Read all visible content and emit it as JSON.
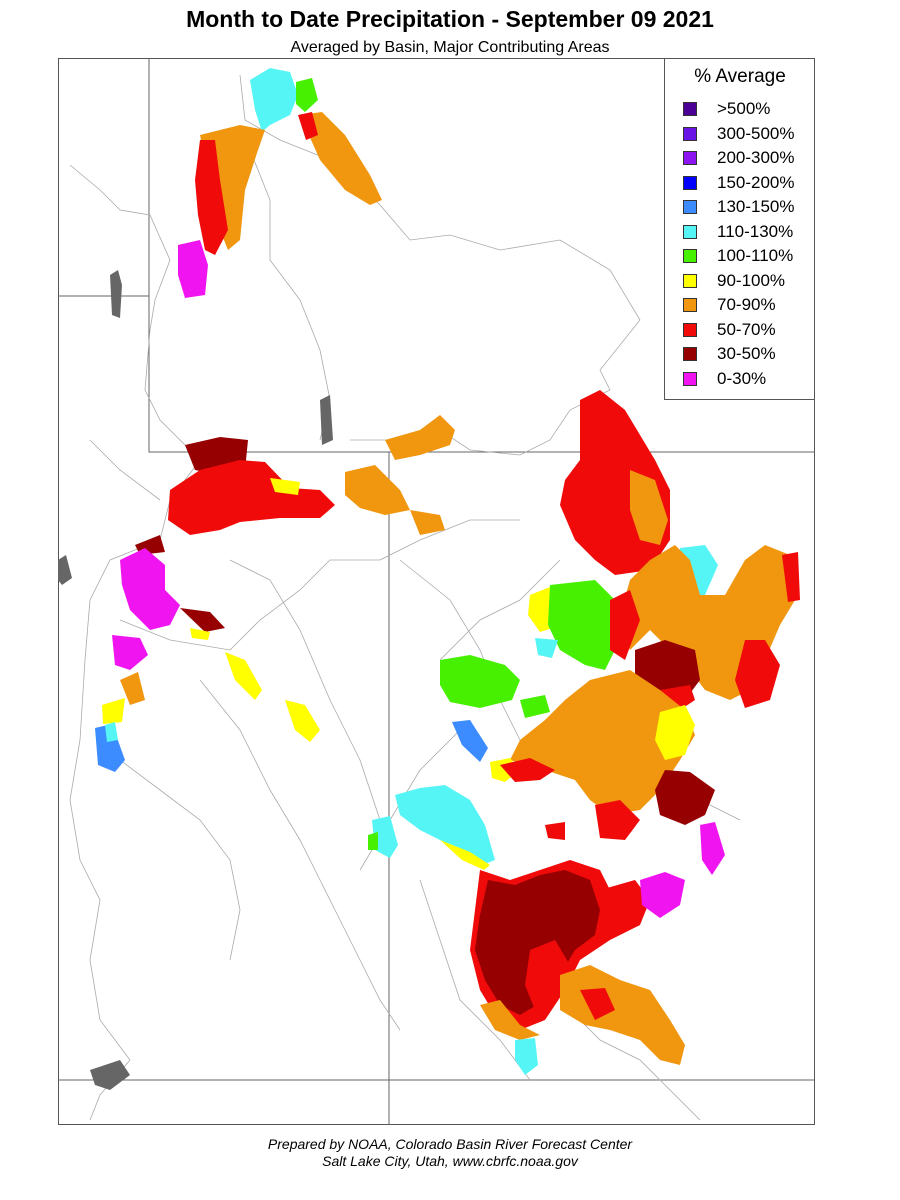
{
  "header": {
    "title": "Month to Date Precipitation - September 09 2021",
    "subtitle": "Averaged by Basin, Major Contributing Areas"
  },
  "legend": {
    "title": "% Average",
    "items": [
      {
        "label": ">500%",
        "color": "#4b0096"
      },
      {
        "label": "300-500%",
        "color": "#6a14e6"
      },
      {
        "label": "200-300%",
        "color": "#8c14f0"
      },
      {
        "label": "150-200%",
        "color": "#0000ff"
      },
      {
        "label": "130-150%",
        "color": "#3c8cff"
      },
      {
        "label": "110-130%",
        "color": "#55f5f5"
      },
      {
        "label": "100-110%",
        "color": "#46f000"
      },
      {
        "label": "90-100%",
        "color": "#ffff00"
      },
      {
        "label": "70-90%",
        "color": "#f0960f"
      },
      {
        "label": "50-70%",
        "color": "#f00a0a"
      },
      {
        "label": "30-50%",
        "color": "#960000"
      },
      {
        "label": "0-30%",
        "color": "#f014f0"
      }
    ]
  },
  "footer": {
    "line1": "Prepared by NOAA, Colorado Basin River Forecast Center",
    "line2": "Salt Lake City, Utah, www.cbrfc.noaa.gov"
  }
}
